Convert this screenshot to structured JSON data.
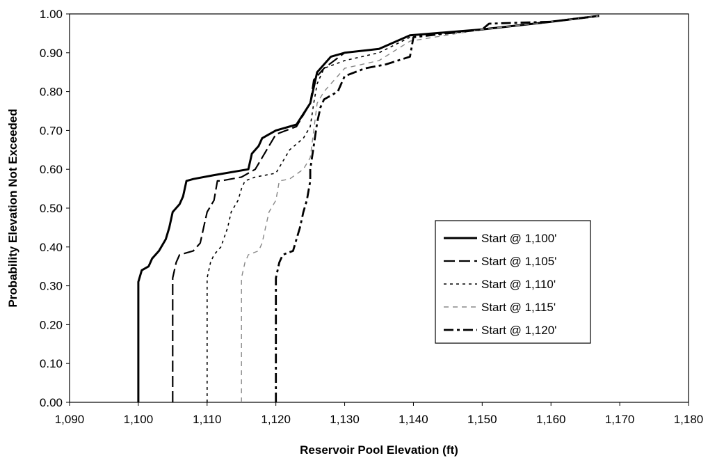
{
  "chart_data": {
    "type": "line",
    "title": "",
    "xlabel": "Reservoir Pool Elevation (ft)",
    "ylabel": "Probability Elevation Not Exceeded",
    "xlim": [
      1090,
      1180
    ],
    "ylim": [
      0,
      1.0
    ],
    "x_ticks": [
      "1,090",
      "1,100",
      "1,110",
      "1,120",
      "1,130",
      "1,140",
      "1,150",
      "1,160",
      "1,170",
      "1,180"
    ],
    "y_ticks": [
      "0.00",
      "0.10",
      "0.20",
      "0.30",
      "0.40",
      "0.50",
      "0.60",
      "0.70",
      "0.80",
      "0.90",
      "1.00"
    ],
    "grid": false,
    "legend_position": "right",
    "series": [
      {
        "name": "Start @ 1,100'",
        "style": "solid-thick",
        "color": "#000000",
        "points": [
          [
            1100,
            0.0
          ],
          [
            1100,
            0.31
          ],
          [
            1100.5,
            0.34
          ],
          [
            1101.5,
            0.35
          ],
          [
            1102,
            0.37
          ],
          [
            1103,
            0.39
          ],
          [
            1104,
            0.42
          ],
          [
            1104.5,
            0.45
          ],
          [
            1105,
            0.49
          ],
          [
            1106,
            0.51
          ],
          [
            1106.5,
            0.53
          ],
          [
            1107,
            0.57
          ],
          [
            1108,
            0.575
          ],
          [
            1111,
            0.585
          ],
          [
            1116,
            0.6
          ],
          [
            1116.5,
            0.64
          ],
          [
            1117.5,
            0.66
          ],
          [
            1118,
            0.68
          ],
          [
            1120,
            0.7
          ],
          [
            1123,
            0.715
          ],
          [
            1125,
            0.77
          ],
          [
            1126,
            0.85
          ],
          [
            1128,
            0.89
          ],
          [
            1130,
            0.9
          ],
          [
            1135,
            0.91
          ],
          [
            1139.5,
            0.945
          ],
          [
            1150,
            0.96
          ],
          [
            1160,
            0.98
          ],
          [
            1167,
            0.995
          ]
        ]
      },
      {
        "name": "Start @ 1,105'",
        "style": "long-dash",
        "color": "#000000",
        "points": [
          [
            1105,
            0.0
          ],
          [
            1105,
            0.32
          ],
          [
            1105.5,
            0.36
          ],
          [
            1106,
            0.38
          ],
          [
            1108,
            0.39
          ],
          [
            1109,
            0.41
          ],
          [
            1109.5,
            0.45
          ],
          [
            1110,
            0.49
          ],
          [
            1111,
            0.52
          ],
          [
            1111.5,
            0.57
          ],
          [
            1112,
            0.57
          ],
          [
            1115,
            0.58
          ],
          [
            1117,
            0.6
          ],
          [
            1118,
            0.63
          ],
          [
            1119,
            0.66
          ],
          [
            1120,
            0.69
          ],
          [
            1123,
            0.71
          ],
          [
            1125,
            0.77
          ],
          [
            1125.5,
            0.83
          ],
          [
            1127,
            0.86
          ],
          [
            1130,
            0.9
          ],
          [
            1135,
            0.91
          ],
          [
            1139.5,
            0.945
          ],
          [
            1150,
            0.96
          ],
          [
            1160,
            0.98
          ],
          [
            1167,
            0.995
          ]
        ]
      },
      {
        "name": "Start @ 1,110'",
        "style": "short-dash",
        "color": "#000000",
        "points": [
          [
            1110,
            0.0
          ],
          [
            1110,
            0.32
          ],
          [
            1110.5,
            0.36
          ],
          [
            1111,
            0.38
          ],
          [
            1112,
            0.4
          ],
          [
            1113,
            0.45
          ],
          [
            1113.5,
            0.49
          ],
          [
            1114.5,
            0.52
          ],
          [
            1115,
            0.55
          ],
          [
            1115.5,
            0.57
          ],
          [
            1117,
            0.58
          ],
          [
            1120,
            0.59
          ],
          [
            1121,
            0.62
          ],
          [
            1122,
            0.65
          ],
          [
            1124,
            0.68
          ],
          [
            1125,
            0.71
          ],
          [
            1125.5,
            0.77
          ],
          [
            1126,
            0.82
          ],
          [
            1127,
            0.86
          ],
          [
            1130,
            0.88
          ],
          [
            1135,
            0.9
          ],
          [
            1139.5,
            0.94
          ],
          [
            1150,
            0.96
          ],
          [
            1160,
            0.98
          ],
          [
            1167,
            0.995
          ]
        ]
      },
      {
        "name": "Start @ 1,115'",
        "style": "dash-gray",
        "color": "#888888",
        "points": [
          [
            1115,
            0.0
          ],
          [
            1115,
            0.32
          ],
          [
            1115.5,
            0.36
          ],
          [
            1116,
            0.38
          ],
          [
            1117.5,
            0.39
          ],
          [
            1118,
            0.41
          ],
          [
            1118.5,
            0.45
          ],
          [
            1119,
            0.49
          ],
          [
            1120,
            0.52
          ],
          [
            1120.5,
            0.57
          ],
          [
            1122,
            0.575
          ],
          [
            1124,
            0.6
          ],
          [
            1125,
            0.63
          ],
          [
            1125.5,
            0.7
          ],
          [
            1126,
            0.77
          ],
          [
            1127,
            0.8
          ],
          [
            1128,
            0.82
          ],
          [
            1130,
            0.86
          ],
          [
            1135,
            0.88
          ],
          [
            1139.5,
            0.93
          ],
          [
            1150,
            0.96
          ],
          [
            1160,
            0.98
          ],
          [
            1167,
            0.995
          ]
        ]
      },
      {
        "name": "Start @ 1,120'",
        "style": "dash-dot-thick",
        "color": "#000000",
        "points": [
          [
            1120,
            0.0
          ],
          [
            1120,
            0.32
          ],
          [
            1120.5,
            0.36
          ],
          [
            1121,
            0.38
          ],
          [
            1122.5,
            0.39
          ],
          [
            1123,
            0.42
          ],
          [
            1123.5,
            0.45
          ],
          [
            1124,
            0.49
          ],
          [
            1124.5,
            0.52
          ],
          [
            1125,
            0.57
          ],
          [
            1125,
            0.6
          ],
          [
            1125.5,
            0.66
          ],
          [
            1126,
            0.72
          ],
          [
            1126.5,
            0.76
          ],
          [
            1127,
            0.78
          ],
          [
            1129,
            0.8
          ],
          [
            1130,
            0.84
          ],
          [
            1133,
            0.86
          ],
          [
            1136,
            0.87
          ],
          [
            1139.5,
            0.89
          ],
          [
            1140,
            0.94
          ],
          [
            1150,
            0.96
          ],
          [
            1151,
            0.975
          ],
          [
            1160,
            0.98
          ],
          [
            1167,
            0.995
          ]
        ]
      }
    ]
  }
}
